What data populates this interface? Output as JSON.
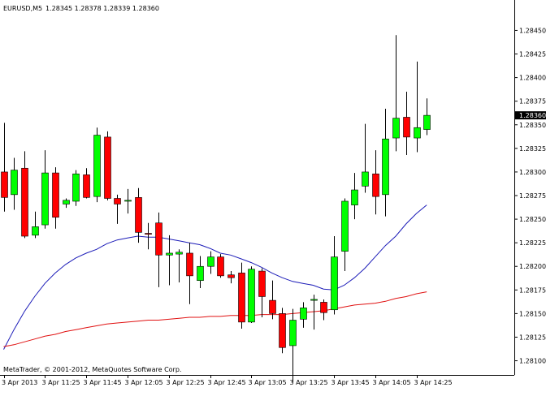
{
  "header": {
    "symbol": "EURUSD,M5",
    "ohlc": "1.28345 1.28378 1.28339 1.28360"
  },
  "footer": {
    "copyright": "MetaTrader, © 2001-2012, MetaQuotes Software Corp."
  },
  "colors": {
    "bull": "#00ff00",
    "bear": "#ff0000",
    "wick": "#000000",
    "ma_fast": "#1c1cb8",
    "ma_slow": "#e01010",
    "price_tag_bg": "#000000",
    "price_tag_text": "#ffffff"
  },
  "chart_data": {
    "type": "candlestick",
    "ylim": [
      1.28085,
      1.28465
    ],
    "y_ticks": [
      "1.28450",
      "1.28425",
      "1.28400",
      "1.28375",
      "1.28350",
      "1.28325",
      "1.28300",
      "1.28275",
      "1.28250",
      "1.28225",
      "1.28200",
      "1.28175",
      "1.28150",
      "1.28125",
      "1.28100"
    ],
    "current_price": "1.28360",
    "x_labels": [
      "3 Apr 2013",
      "3 Apr 11:25",
      "3 Apr 11:45",
      "3 Apr 12:05",
      "3 Apr 12:25",
      "3 Apr 12:45",
      "3 Apr 13:05",
      "3 Apr 13:25",
      "3 Apr 13:45",
      "3 Apr 14:05",
      "3 Apr 14:25"
    ],
    "candles": [
      {
        "o": 1.283,
        "h": 1.28352,
        "l": 1.28258,
        "c": 1.28273
      },
      {
        "o": 1.28276,
        "h": 1.28315,
        "l": 1.2826,
        "c": 1.28302
      },
      {
        "o": 1.28304,
        "h": 1.28322,
        "l": 1.2823,
        "c": 1.28232
      },
      {
        "o": 1.28233,
        "h": 1.28258,
        "l": 1.2823,
        "c": 1.28242
      },
      {
        "o": 1.28244,
        "h": 1.28323,
        "l": 1.2824,
        "c": 1.28299
      },
      {
        "o": 1.28299,
        "h": 1.28305,
        "l": 1.2824,
        "c": 1.28252
      },
      {
        "o": 1.28266,
        "h": 1.28272,
        "l": 1.28262,
        "c": 1.2827
      },
      {
        "o": 1.28269,
        "h": 1.28302,
        "l": 1.28264,
        "c": 1.28298
      },
      {
        "o": 1.28297,
        "h": 1.28304,
        "l": 1.28272,
        "c": 1.28273
      },
      {
        "o": 1.28274,
        "h": 1.28347,
        "l": 1.28268,
        "c": 1.28339
      },
      {
        "o": 1.28337,
        "h": 1.28343,
        "l": 1.2827,
        "c": 1.28272
      },
      {
        "o": 1.28272,
        "h": 1.28276,
        "l": 1.28245,
        "c": 1.28266
      },
      {
        "o": 1.28269,
        "h": 1.28282,
        "l": 1.28256,
        "c": 1.2827
      },
      {
        "o": 1.28273,
        "h": 1.28283,
        "l": 1.28225,
        "c": 1.28236
      },
      {
        "o": 1.28235,
        "h": 1.28246,
        "l": 1.28218,
        "c": 1.28234
      },
      {
        "o": 1.28246,
        "h": 1.28257,
        "l": 1.28178,
        "c": 1.28212
      },
      {
        "o": 1.28212,
        "h": 1.28233,
        "l": 1.2818,
        "c": 1.28214
      },
      {
        "o": 1.28213,
        "h": 1.28218,
        "l": 1.28183,
        "c": 1.28215
      },
      {
        "o": 1.28214,
        "h": 1.28225,
        "l": 1.2816,
        "c": 1.2819
      },
      {
        "o": 1.28185,
        "h": 1.28211,
        "l": 1.28177,
        "c": 1.282
      },
      {
        "o": 1.282,
        "h": 1.28216,
        "l": 1.28192,
        "c": 1.2821
      },
      {
        "o": 1.2821,
        "h": 1.28213,
        "l": 1.28188,
        "c": 1.2819
      },
      {
        "o": 1.28191,
        "h": 1.28195,
        "l": 1.28182,
        "c": 1.28188
      },
      {
        "o": 1.28193,
        "h": 1.28204,
        "l": 1.28134,
        "c": 1.28141
      },
      {
        "o": 1.28141,
        "h": 1.282,
        "l": 1.2814,
        "c": 1.28197
      },
      {
        "o": 1.28195,
        "h": 1.28198,
        "l": 1.28146,
        "c": 1.28168
      },
      {
        "o": 1.28164,
        "h": 1.28185,
        "l": 1.28144,
        "c": 1.2815
      },
      {
        "o": 1.2815,
        "h": 1.28156,
        "l": 1.28108,
        "c": 1.28114
      },
      {
        "o": 1.28116,
        "h": 1.28155,
        "l": 1.28077,
        "c": 1.28143
      },
      {
        "o": 1.28144,
        "h": 1.28162,
        "l": 1.28135,
        "c": 1.28156
      },
      {
        "o": 1.28164,
        "h": 1.2817,
        "l": 1.28133,
        "c": 1.28165
      },
      {
        "o": 1.28162,
        "h": 1.28165,
        "l": 1.28143,
        "c": 1.28151
      },
      {
        "o": 1.28154,
        "h": 1.28232,
        "l": 1.28149,
        "c": 1.2821
      },
      {
        "o": 1.28216,
        "h": 1.28272,
        "l": 1.28195,
        "c": 1.28269
      },
      {
        "o": 1.28265,
        "h": 1.28299,
        "l": 1.2825,
        "c": 1.28281
      },
      {
        "o": 1.28285,
        "h": 1.28351,
        "l": 1.28278,
        "c": 1.283
      },
      {
        "o": 1.28298,
        "h": 1.28323,
        "l": 1.28255,
        "c": 1.28274
      },
      {
        "o": 1.28276,
        "h": 1.28367,
        "l": 1.28253,
        "c": 1.28335
      },
      {
        "o": 1.28336,
        "h": 1.28445,
        "l": 1.28322,
        "c": 1.28357
      },
      {
        "o": 1.28358,
        "h": 1.28385,
        "l": 1.28318,
        "c": 1.28337
      },
      {
        "o": 1.28336,
        "h": 1.28417,
        "l": 1.28321,
        "c": 1.28347
      },
      {
        "o": 1.28345,
        "h": 1.28378,
        "l": 1.28339,
        "c": 1.2836
      }
    ],
    "ma_fast": [
      1.28112,
      1.28133,
      1.28152,
      1.28168,
      1.28182,
      1.28193,
      1.28202,
      1.28209,
      1.28214,
      1.28218,
      1.28224,
      1.28228,
      1.2823,
      1.28232,
      1.28231,
      1.28231,
      1.28229,
      1.28227,
      1.28225,
      1.28223,
      1.28219,
      1.28214,
      1.28212,
      1.28208,
      1.28204,
      1.28199,
      1.28193,
      1.28188,
      1.28184,
      1.28182,
      1.2818,
      1.28176,
      1.28175,
      1.2818,
      1.28188,
      1.28198,
      1.2821,
      1.28222,
      1.28232,
      1.28245,
      1.28256,
      1.28265
    ],
    "ma_slow": [
      1.28115,
      1.28117,
      1.2812,
      1.28123,
      1.28126,
      1.28128,
      1.28131,
      1.28133,
      1.28135,
      1.28137,
      1.28139,
      1.2814,
      1.28141,
      1.28142,
      1.28143,
      1.28143,
      1.28144,
      1.28145,
      1.28146,
      1.28146,
      1.28147,
      1.28147,
      1.28148,
      1.28148,
      1.28148,
      1.28149,
      1.28149,
      1.28149,
      1.2815,
      1.28151,
      1.28152,
      1.28153,
      1.28155,
      1.28157,
      1.28159,
      1.2816,
      1.28161,
      1.28163,
      1.28166,
      1.28168,
      1.28171,
      1.28173
    ]
  }
}
